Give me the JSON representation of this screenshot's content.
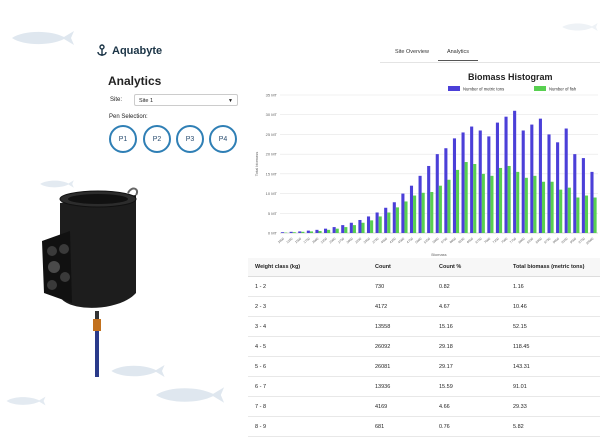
{
  "brand": {
    "name": "Aquabyte"
  },
  "nav": {
    "tabs": [
      {
        "label": "Site Overview"
      },
      {
        "label": "Analytics"
      }
    ]
  },
  "page": {
    "title": "Analytics"
  },
  "site": {
    "label": "Site:",
    "value": "Site 1"
  },
  "pens": {
    "label": "Pen Selection:",
    "items": [
      "P1",
      "P2",
      "P3",
      "P4"
    ]
  },
  "colors": {
    "accent": "#2f7fb5",
    "series_tons": "#4b3fd8",
    "series_fish": "#58d050"
  },
  "chart_data": {
    "type": "bar",
    "title": "Biomass Histogram",
    "xlabel": "Biomass",
    "ylabel": "Total biomass",
    "yticks": [
      "0 MT",
      "5 MT",
      "10 MT",
      "15 MT",
      "20 MT",
      "25 MT",
      "30 MT",
      "35 MT"
    ],
    "ylim": [
      0,
      35
    ],
    "grid": true,
    "legend": "top-right",
    "categories": [
      "1000",
      "1250",
      "1500",
      "1750",
      "2000",
      "2250",
      "2500",
      "2750",
      "3000",
      "3250",
      "3500",
      "3750",
      "4000",
      "4250",
      "4500",
      "4750",
      "5000",
      "5250",
      "5500",
      "5750",
      "6000",
      "6250",
      "6500",
      "6750",
      "7000",
      "7250",
      "7500",
      "7750",
      "8000",
      "8250",
      "8500",
      "8750",
      "9000",
      "9250",
      "9500",
      "9750",
      "10000"
    ],
    "series": [
      {
        "name": "Number of metric tons",
        "color": "#4b3fd8",
        "values": [
          0.2,
          0.3,
          0.4,
          0.6,
          0.8,
          1.1,
          1.5,
          2.0,
          2.6,
          3.3,
          4.2,
          5.2,
          6.4,
          7.8,
          10.0,
          12.0,
          14.5,
          17.0,
          20.0,
          21.5,
          24.0,
          25.5,
          27.0,
          26.0,
          24.5,
          28.0,
          29.5,
          31.0,
          26.0,
          27.5,
          29.0,
          25.0,
          23.0,
          26.5,
          20.0,
          19.0,
          15.5
        ]
      },
      {
        "name": "Number of fish",
        "color": "#58d050",
        "values": [
          0.1,
          0.2,
          0.3,
          0.4,
          0.5,
          0.8,
          1.1,
          1.5,
          2.0,
          2.6,
          3.2,
          4.2,
          5.2,
          6.5,
          8.0,
          9.5,
          10.2,
          10.4,
          12.0,
          13.5,
          16.0,
          18.0,
          17.5,
          15.0,
          14.5,
          16.5,
          17.0,
          15.5,
          14.0,
          14.5,
          13.0,
          13.0,
          11.0,
          11.5,
          9.0,
          9.5,
          9.0
        ]
      }
    ]
  },
  "table": {
    "headers": [
      "Weight class (kg)",
      "Count",
      "Count %",
      "Total biomass (metric tons)"
    ],
    "rows": [
      [
        "1 - 2",
        "730",
        "0.82",
        "1.16"
      ],
      [
        "2 - 3",
        "4172",
        "4.67",
        "10.46"
      ],
      [
        "3 - 4",
        "13558",
        "15.16",
        "52.15"
      ],
      [
        "4 - 5",
        "26092",
        "29.18",
        "118.45"
      ],
      [
        "5 - 6",
        "26081",
        "29.17",
        "143.31"
      ],
      [
        "6 - 7",
        "13936",
        "15.59",
        "91.01"
      ],
      [
        "7 - 8",
        "4169",
        "4.66",
        "29.33"
      ],
      [
        "8 - 9",
        "681",
        "0.76",
        "5.82"
      ]
    ]
  }
}
